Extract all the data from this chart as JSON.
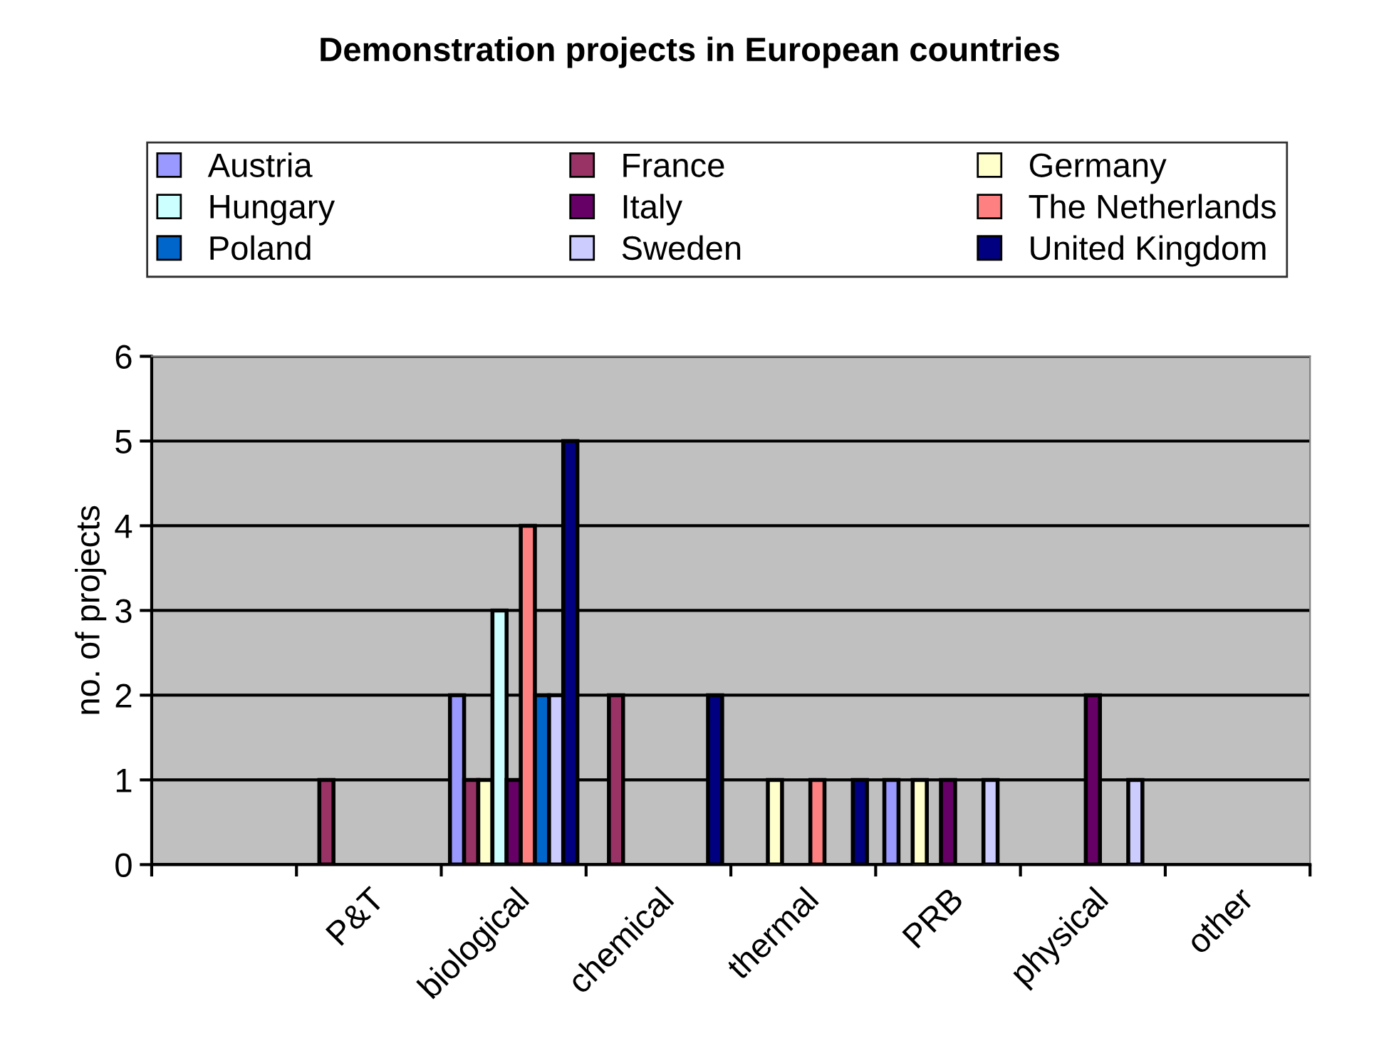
{
  "chart_data": {
    "type": "bar",
    "title": "Demonstration projects in European countries",
    "ylabel": "no. of projects",
    "categories": [
      null,
      "P&T",
      "biological",
      "chemical",
      "thermal",
      "PRB",
      "physical",
      "other"
    ],
    "series": [
      {
        "name": "Austria",
        "color": "#9999ff",
        "values": [
          null,
          null,
          2,
          null,
          null,
          1,
          null,
          null
        ]
      },
      {
        "name": "France",
        "color": "#993366",
        "values": [
          null,
          1,
          1,
          2,
          null,
          null,
          null,
          null
        ]
      },
      {
        "name": "Germany",
        "color": "#ffffcc",
        "values": [
          null,
          null,
          1,
          null,
          1,
          1,
          null,
          null
        ]
      },
      {
        "name": "Hungary",
        "color": "#ccffff",
        "values": [
          null,
          null,
          3,
          null,
          null,
          null,
          null,
          null
        ]
      },
      {
        "name": "Italy",
        "color": "#660066",
        "values": [
          null,
          null,
          1,
          null,
          null,
          1,
          2,
          null
        ]
      },
      {
        "name": "The Netherlands",
        "color": "#ff8080",
        "values": [
          null,
          null,
          4,
          null,
          1,
          null,
          null,
          null
        ]
      },
      {
        "name": "Poland",
        "color": "#0066cc",
        "values": [
          null,
          null,
          2,
          null,
          null,
          null,
          null,
          null
        ]
      },
      {
        "name": "Sweden",
        "color": "#ccccff",
        "values": [
          null,
          null,
          2,
          null,
          null,
          1,
          1,
          null
        ]
      },
      {
        "name": "United Kingdom",
        "color": "#000080",
        "values": [
          null,
          null,
          5,
          2,
          1,
          null,
          null,
          null
        ]
      }
    ],
    "ylim": [
      0,
      6
    ],
    "yticks": [
      0,
      1,
      2,
      3,
      4,
      5,
      6
    ],
    "grid": "y",
    "legend": "top"
  }
}
